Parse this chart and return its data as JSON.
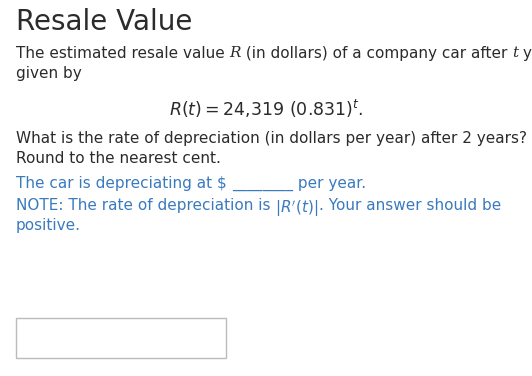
{
  "title": "Resale Value",
  "title_fontsize": 20,
  "bg_color": "#ffffff",
  "text_color": "#2b2b2b",
  "blue_color": "#3a7abf",
  "body_fontsize": 11.0,
  "formula_fontsize": 12.5,
  "line1a": "The estimated resale value ",
  "line1b": " (in dollars) of a company car after ",
  "line1c": " years is",
  "line2": "given by",
  "question1": "What is the rate of depreciation (in dollars per year) after 2 years?",
  "question2": "Round to the nearest cent.",
  "blue1a": "The car is depreciating at $ ",
  "blue1b": " per year.",
  "note1a": "NOTE: The rate of depreciation is ",
  "note1b": ". Your answer should be",
  "note2": "positive."
}
